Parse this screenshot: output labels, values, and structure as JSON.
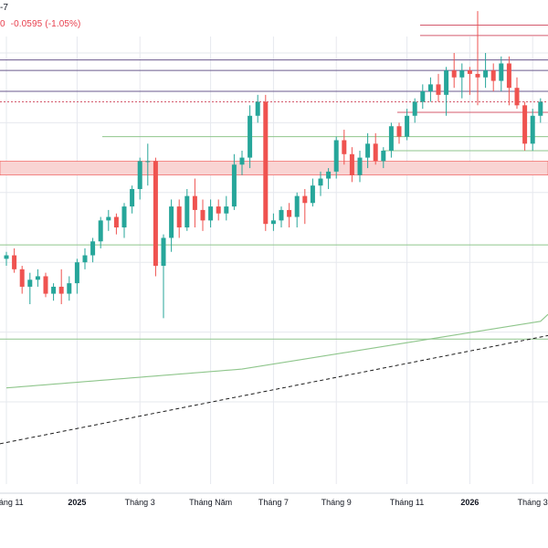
{
  "header": {
    "ticker_fragment": "-7",
    "price_fragment": "0",
    "change_value": "-0.0595",
    "change_percent": "(-1.05%)"
  },
  "colors": {
    "up": "#26a69a",
    "down": "#ef5350",
    "zone": "#f9d4d3",
    "ma": "#8fc68c",
    "support": "#8fc68c",
    "resistance_purple": "#6b5a8e",
    "resistance_red": "#d45a6d",
    "grid": "#e6e8ee",
    "trend": "#1c1c1c"
  },
  "chart_data": {
    "type": "candlestick",
    "title": "",
    "xlabel": "",
    "ylabel": "",
    "x_tick_labels": [
      {
        "label": "Tháng 11",
        "bar": 0
      },
      {
        "label": "2025",
        "bar": 9
      },
      {
        "label": "Tháng 3",
        "bar": 17
      },
      {
        "label": "Tháng Năm",
        "bar": 26
      },
      {
        "label": "Tháng 7",
        "bar": 34
      },
      {
        "label": "Tháng 9",
        "bar": 42
      },
      {
        "label": "Tháng 11",
        "bar": 51
      },
      {
        "label": "2026",
        "bar": 59
      },
      {
        "label": "Tháng 3",
        "bar": 67
      }
    ],
    "ylim": [
      0,
      100
    ],
    "candles": [
      [
        41,
        43,
        39,
        42
      ],
      [
        42,
        44,
        37,
        38
      ],
      [
        38,
        39,
        31,
        33
      ],
      [
        33,
        37,
        28,
        35
      ],
      [
        35,
        38,
        33,
        36
      ],
      [
        36,
        37,
        30,
        31
      ],
      [
        31,
        34,
        29,
        33
      ],
      [
        33,
        38,
        28,
        31
      ],
      [
        31,
        36,
        29,
        34
      ],
      [
        34,
        41,
        31,
        40
      ],
      [
        40,
        44,
        38,
        42
      ],
      [
        42,
        47,
        40,
        46
      ],
      [
        46,
        53,
        44,
        52
      ],
      [
        52,
        55,
        49,
        53
      ],
      [
        53,
        54,
        48,
        50
      ],
      [
        50,
        57,
        47,
        56
      ],
      [
        56,
        62,
        54,
        61
      ],
      [
        61,
        70,
        58,
        69
      ],
      [
        69,
        74,
        62,
        69
      ],
      [
        69,
        70,
        36,
        39
      ],
      [
        39,
        48,
        24,
        47
      ],
      [
        47,
        58,
        43,
        56
      ],
      [
        56,
        58,
        47,
        50
      ],
      [
        50,
        61,
        49,
        59
      ],
      [
        59,
        64,
        50,
        55
      ],
      [
        55,
        58,
        49,
        52
      ],
      [
        52,
        58,
        50,
        56
      ],
      [
        56,
        58,
        52,
        54
      ],
      [
        54,
        59,
        52,
        56
      ],
      [
        56,
        71,
        55,
        68
      ],
      [
        68,
        72,
        65,
        70
      ],
      [
        70,
        85,
        67,
        82
      ],
      [
        82,
        88,
        80,
        86
      ],
      [
        86,
        88,
        49,
        51
      ],
      [
        51,
        54,
        49,
        52
      ],
      [
        52,
        56,
        50,
        55
      ],
      [
        55,
        57,
        50,
        53
      ],
      [
        53,
        60,
        50,
        59
      ],
      [
        59,
        61,
        51,
        57
      ],
      [
        57,
        64,
        56,
        62
      ],
      [
        62,
        66,
        59,
        64
      ],
      [
        64,
        67,
        61,
        66
      ],
      [
        66,
        76,
        64,
        75
      ],
      [
        75,
        78,
        68,
        71
      ],
      [
        71,
        73,
        63,
        65
      ],
      [
        65,
        72,
        63,
        70
      ],
      [
        70,
        77,
        67,
        74
      ],
      [
        74,
        77,
        68,
        69
      ],
      [
        69,
        73,
        67,
        72
      ],
      [
        72,
        80,
        70,
        79
      ],
      [
        79,
        80,
        74,
        76
      ],
      [
        76,
        84,
        75,
        82
      ],
      [
        82,
        87,
        80,
        86
      ],
      [
        86,
        91,
        84,
        89
      ],
      [
        89,
        93,
        86,
        91
      ],
      [
        91,
        94,
        86,
        88
      ],
      [
        88,
        96,
        82,
        95
      ],
      [
        95,
        100,
        90,
        93
      ],
      [
        93,
        97,
        87,
        95
      ],
      [
        95,
        96,
        88,
        94
      ],
      [
        94,
        112,
        85,
        93
      ],
      [
        93,
        100,
        90,
        95
      ],
      [
        95,
        97,
        89,
        92
      ],
      [
        92,
        99,
        89,
        97
      ],
      [
        97,
        99,
        85,
        90
      ],
      [
        90,
        93,
        84,
        85
      ],
      [
        85,
        86,
        72,
        74
      ],
      [
        74,
        84,
        72,
        82
      ],
      [
        82,
        87,
        80,
        86
      ]
    ]
  }
}
